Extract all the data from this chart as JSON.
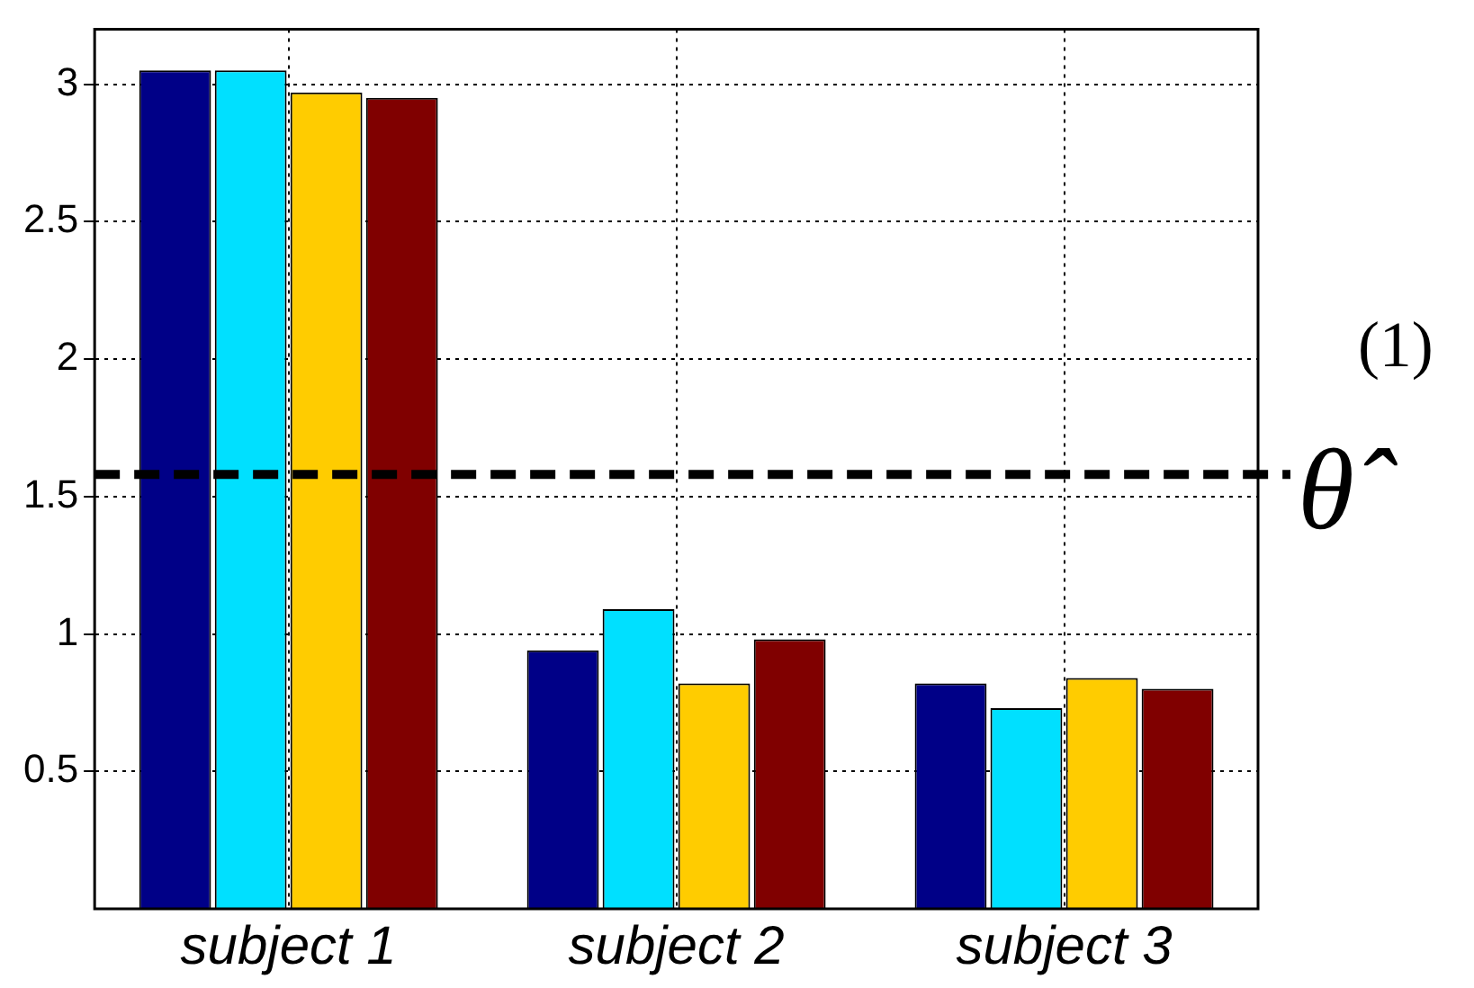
{
  "chart_data": {
    "type": "bar",
    "categories": [
      "subject 1",
      "subject 2",
      "subject 3"
    ],
    "series": [
      {
        "color": "#000087",
        "values": [
          3.05,
          0.94,
          0.82
        ]
      },
      {
        "color": "#00e0ff",
        "values": [
          3.05,
          1.09,
          0.73
        ]
      },
      {
        "color": "#ffcc00",
        "values": [
          2.97,
          0.82,
          0.84
        ]
      },
      {
        "color": "#800000",
        "values": [
          2.95,
          0.98,
          0.8
        ]
      }
    ],
    "ylim": [
      0,
      3.2
    ],
    "yticks": [
      0.5,
      1,
      1.5,
      2,
      2.5,
      3
    ],
    "grid": true,
    "legend": false,
    "ref_lines": [
      {
        "axis": "y",
        "value": 1.58,
        "label": "θ̂$^{(1)}$",
        "color": "#000000",
        "line_style": "dashed"
      }
    ]
  }
}
